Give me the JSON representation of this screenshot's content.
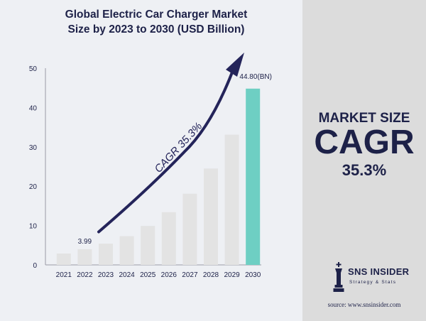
{
  "chart_data": {
    "type": "bar",
    "title": "Global Electric Car Charger Market",
    "subtitle": "Size by 2023 to 2030 (USD Billion)",
    "categories": [
      "2021",
      "2022",
      "2023",
      "2024",
      "2025",
      "2026",
      "2027",
      "2028",
      "2029",
      "2030"
    ],
    "values": [
      2.9,
      3.99,
      5.4,
      7.3,
      9.9,
      13.4,
      18.1,
      24.5,
      33.1,
      44.8
    ],
    "ylim": [
      0,
      50
    ],
    "yticks": [
      "0",
      "10",
      "20",
      "30",
      "40",
      "50"
    ],
    "data_labels": {
      "2022": "3.99",
      "2030": "44.80(BN)"
    },
    "annotation": "CAGR 35.3%",
    "grid": false,
    "colors": {
      "bar": "#e3e3e3",
      "highlight_bar": "#6ecfc3",
      "arrow": "#24245a",
      "text": "#1d2148"
    }
  },
  "side_panel": {
    "label": "MARKET SIZE",
    "headline": "CAGR",
    "rate": "35.3%"
  },
  "logo": {
    "name": "SNS INSIDER",
    "tagline": "Strategy & Stats"
  },
  "source": "source: www.snsinsider.com"
}
